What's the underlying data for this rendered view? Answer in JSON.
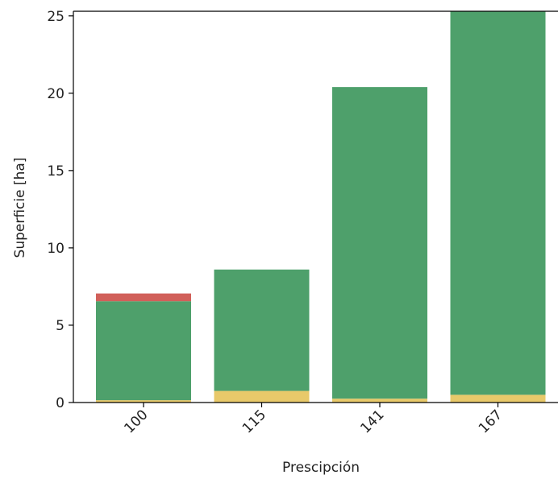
{
  "chart_data": {
    "type": "bar",
    "stacked": true,
    "title": "",
    "xlabel": "Prescipción",
    "ylabel": "Superficie [ha]",
    "categories": [
      "100",
      "115",
      "141",
      "167"
    ],
    "ylim": [
      0,
      25.3
    ],
    "yticks": [
      0,
      5,
      10,
      15,
      20,
      25
    ],
    "tick_label_rotation": -45,
    "grid": false,
    "legend": "none",
    "series": [
      {
        "color": "#e8c96a",
        "values": [
          0.15,
          0.75,
          0.25,
          0.5
        ]
      },
      {
        "color": "#4ea06b",
        "values": [
          6.4,
          7.85,
          20.15,
          24.8
        ]
      },
      {
        "color": "#d1605a",
        "values": [
          0.5,
          0,
          0,
          0
        ]
      }
    ]
  }
}
